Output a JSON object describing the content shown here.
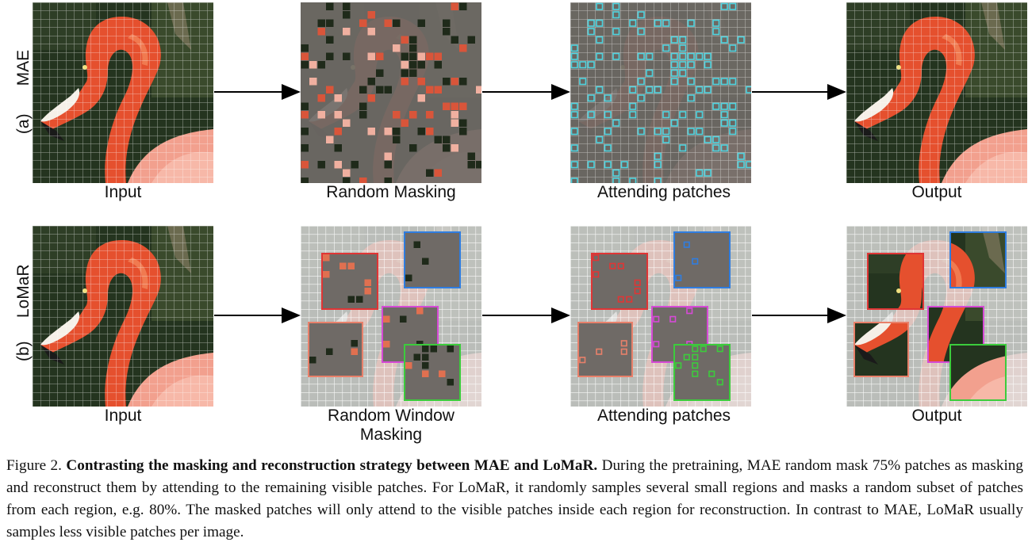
{
  "rows": [
    {
      "id": "mae",
      "tag": "(a)",
      "name": "MAE",
      "labels": [
        "Input",
        "Random Masking",
        "Attending patches",
        "Output"
      ]
    },
    {
      "id": "lomar",
      "tag": "(b)",
      "name": "LoMaR",
      "labels": [
        "Input",
        "Random Window Masking",
        "Attending patches",
        "Output"
      ]
    }
  ],
  "window_colors": {
    "red": "#e03535",
    "blue": "#2f7de0",
    "magenta": "#d64ad6",
    "green": "#3ccc3c",
    "salmon": "#e8806a"
  },
  "attend_color": "#4fd4e0",
  "caption": {
    "prefix": "Figure 2.",
    "title": "Contrasting the masking and reconstruction strategy between MAE and LoMaR.",
    "body": "During the pretraining, MAE random mask 75% patches as masking and reconstruct them by attending to the remaining visible patches. For LoMaR, it randomly samples several small regions and masks a random subset of patches from each region, e.g. 80%. The masked patches will only attend to the visible patches inside each region for reconstruction. In contrast to MAE, LoMaR usually samples less visible patches per image."
  }
}
